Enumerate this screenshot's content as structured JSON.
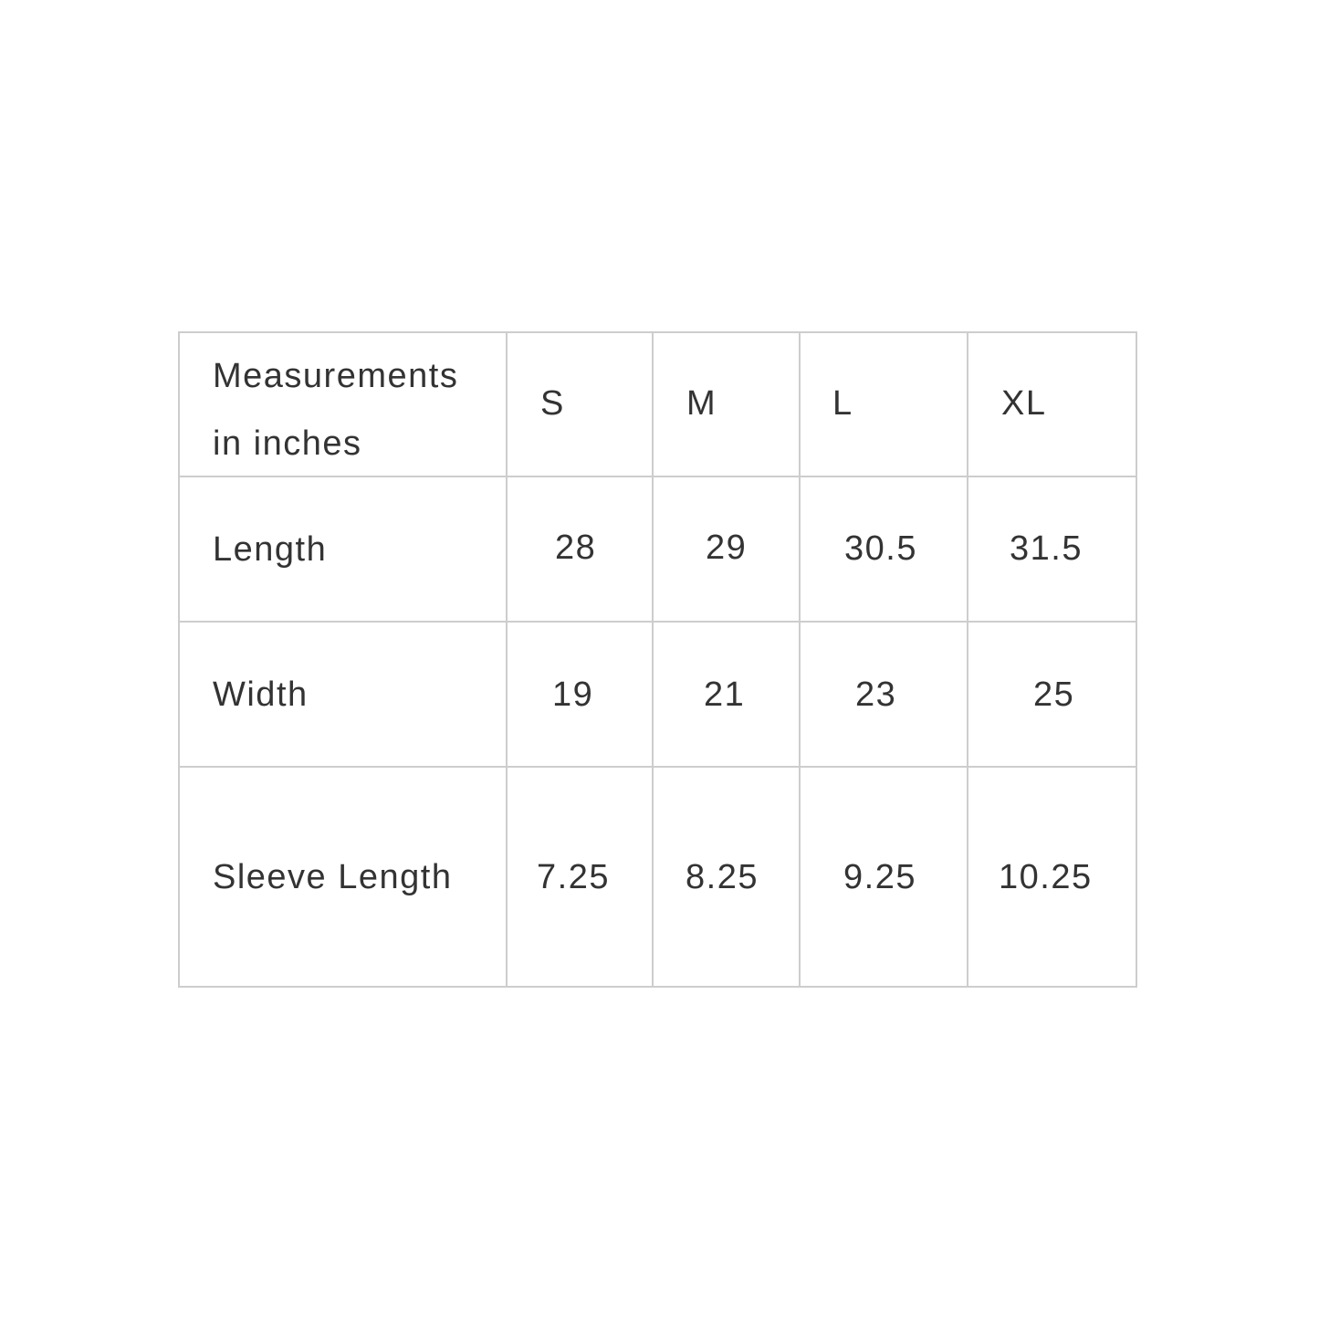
{
  "table": {
    "header": {
      "label_line1": "Measurements",
      "label_line2": "in inches",
      "sizes": [
        "S",
        "M",
        "L",
        "XL"
      ]
    },
    "rows": [
      {
        "label": "Length",
        "values": [
          "28",
          "29",
          "30.5",
          "31.5"
        ]
      },
      {
        "label": "Width",
        "values": [
          "19",
          "21",
          "23",
          "25"
        ]
      },
      {
        "label": "Sleeve Length",
        "values": [
          "7.25",
          "8.25",
          "9.25",
          "10.25"
        ]
      }
    ],
    "border_color": "#cdcdcd",
    "text_color": "#333333"
  }
}
